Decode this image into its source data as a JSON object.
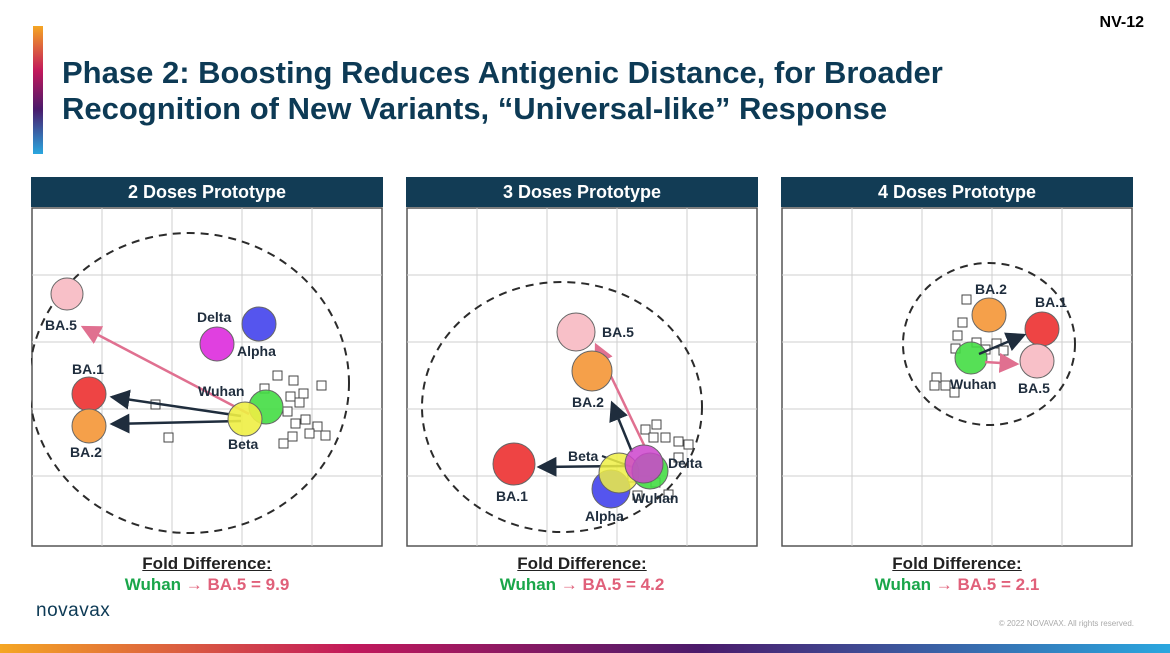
{
  "slide_number": "NV-12",
  "title": {
    "line1": "Phase 2: Boosting Reduces Antigenic Distance, for Broader",
    "line2": "Recognition of New Variants, “Universal-like” Response"
  },
  "logo": "novavax",
  "copyright": "© 2022 NOVAVAX. All rights reserved.",
  "colors": {
    "header_bg": "#123c55",
    "title": "#0d3a55",
    "wuhan_green": "#1aa64a",
    "ba5_pink": "#e0607a",
    "boundary": "#2b2b2b"
  },
  "panels": [
    {
      "header": "2 Doses Prototype",
      "fold_label": "Fold Difference:",
      "fold_from": "Wuhan",
      "fold_arrow": "→",
      "fold_to": "BA.5 = 9.9",
      "variants": [
        {
          "name": "BA.5",
          "label": "BA.5",
          "color": "#f8c0c8"
        },
        {
          "name": "Delta",
          "label": "Delta",
          "color": "#e040e0"
        },
        {
          "name": "Alpha",
          "label": "Alpha",
          "color": "#5555ee"
        },
        {
          "name": "BA.1",
          "label": "BA.1",
          "color": "#ee4444"
        },
        {
          "name": "BA.2",
          "label": "BA.2",
          "color": "#f5a04a"
        },
        {
          "name": "Wuhan",
          "label": "Wuhan",
          "color": "#44dd44"
        },
        {
          "name": "Beta",
          "label": "Beta",
          "color": "#eeee44"
        }
      ]
    },
    {
      "header": "3 Doses Prototype",
      "fold_label": "Fold Difference:",
      "fold_from": "Wuhan",
      "fold_arrow": "→",
      "fold_to": "BA.5 = 4.2",
      "variants": [
        {
          "name": "BA.5",
          "label": "BA.5",
          "color": "#f8c0c8"
        },
        {
          "name": "BA.2",
          "label": "BA.2",
          "color": "#f5a04a"
        },
        {
          "name": "BA.1",
          "label": "BA.1",
          "color": "#ee4444"
        },
        {
          "name": "Alpha",
          "label": "Alpha",
          "color": "#5555ee"
        },
        {
          "name": "Beta",
          "label": "Beta",
          "color": "#eeee44"
        },
        {
          "name": "Wuhan",
          "label": "Wuhan",
          "color": "#44dd44"
        },
        {
          "name": "Delta",
          "label": "Delta",
          "color": "#cc44cc"
        }
      ]
    },
    {
      "header": "4 Doses Prototype",
      "fold_label": "Fold Difference:",
      "fold_from": "Wuhan",
      "fold_arrow": "→",
      "fold_to": "BA.5 = 2.1",
      "variants": [
        {
          "name": "BA.2",
          "label": "BA.2",
          "color": "#f5a04a"
        },
        {
          "name": "BA.1",
          "label": "BA.1",
          "color": "#ee4444"
        },
        {
          "name": "Wuhan",
          "label": "Wuhan",
          "color": "#44dd44"
        },
        {
          "name": "BA.5",
          "label": "BA.5",
          "color": "#f8c0c8"
        }
      ]
    }
  ]
}
